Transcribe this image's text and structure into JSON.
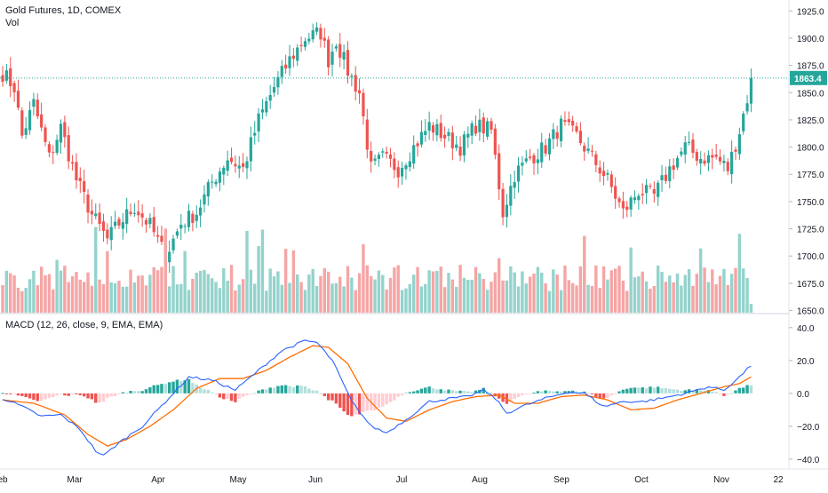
{
  "header": {
    "title": "Gold Futures, 1D, COMEX",
    "volume_label": "Vol",
    "macd_label": "MACD (12, 26, close, 9, EMA, EMA)"
  },
  "colors": {
    "up": "#26a69a",
    "down": "#ef5350",
    "vol_up": "#94d3cc",
    "vol_down": "#f5a5a5",
    "macd_line": "#2962ff",
    "signal_line": "#ff6d00",
    "hist_up_strong": "#26a69a",
    "hist_up_weak": "#b2dfdb",
    "hist_down_strong": "#ef5350",
    "hist_down_weak": "#ffcdd2",
    "price_label_bg": "#26a69a"
  },
  "price_axis": {
    "ticks": [
      "1925.0",
      "1900.0",
      "1875.0",
      "1850.0",
      "1825.0",
      "1800.0",
      "1775.0",
      "1750.0",
      "1725.0",
      "1700.0",
      "1675.0",
      "1650.0"
    ],
    "last_price": "1863.4"
  },
  "macd_axis": {
    "ticks": [
      "40.0",
      "20.0",
      "0.0",
      "−20.0",
      "−40.0"
    ]
  },
  "time_axis": {
    "labels": [
      "Feb",
      "Mar",
      "Apr",
      "May",
      "Jun",
      "Jul",
      "Aug",
      "Sep",
      "Oct",
      "Nov",
      "22"
    ]
  },
  "chart_data": [
    {
      "type": "candlestick",
      "name": "Gold Futures",
      "ylim": [
        1648,
        1935
      ],
      "last": 1863.4,
      "anchors": [
        [
          0,
          1868
        ],
        [
          3,
          1855
        ],
        [
          5,
          1810
        ],
        [
          8,
          1840
        ],
        [
          12,
          1790
        ],
        [
          15,
          1818
        ],
        [
          19,
          1770
        ],
        [
          23,
          1738
        ],
        [
          27,
          1715
        ],
        [
          30,
          1730
        ],
        [
          34,
          1745
        ],
        [
          38,
          1728
        ],
        [
          42,
          1700
        ],
        [
          46,
          1730
        ],
        [
          50,
          1740
        ],
        [
          54,
          1768
        ],
        [
          58,
          1790
        ],
        [
          62,
          1780
        ],
        [
          66,
          1825
        ],
        [
          70,
          1855
        ],
        [
          74,
          1880
        ],
        [
          78,
          1900
        ],
        [
          82,
          1905
        ],
        [
          84,
          1880
        ],
        [
          86,
          1898
        ],
        [
          89,
          1870
        ],
        [
          92,
          1850
        ],
        [
          95,
          1780
        ],
        [
          98,
          1790
        ],
        [
          102,
          1780
        ],
        [
          106,
          1800
        ],
        [
          110,
          1820
        ],
        [
          114,
          1810
        ],
        [
          118,
          1800
        ],
        [
          122,
          1820
        ],
        [
          126,
          1815
        ],
        [
          129,
          1740
        ],
        [
          132,
          1775
        ],
        [
          136,
          1790
        ],
        [
          140,
          1800
        ],
        [
          144,
          1820
        ],
        [
          148,
          1810
        ],
        [
          152,
          1790
        ],
        [
          156,
          1770
        ],
        [
          160,
          1740
        ],
        [
          164,
          1760
        ],
        [
          168,
          1755
        ],
        [
          172,
          1780
        ],
        [
          176,
          1800
        ],
        [
          180,
          1790
        ],
        [
          184,
          1790
        ],
        [
          187,
          1780
        ],
        [
          190,
          1815
        ],
        [
          192,
          1845
        ],
        [
          193,
          1863.4
        ]
      ]
    },
    {
      "type": "bar",
      "name": "Vol",
      "note": "daily volume, relative units"
    },
    {
      "type": "line",
      "name": "MACD",
      "ylim": [
        -46,
        48
      ],
      "macd_anchors": [
        [
          0,
          -3
        ],
        [
          5,
          -8
        ],
        [
          10,
          -14
        ],
        [
          15,
          -13
        ],
        [
          20,
          -22
        ],
        [
          24,
          -35
        ],
        [
          26,
          -38
        ],
        [
          30,
          -30
        ],
        [
          36,
          -20
        ],
        [
          42,
          -5
        ],
        [
          48,
          10
        ],
        [
          54,
          8
        ],
        [
          60,
          2
        ],
        [
          66,
          14
        ],
        [
          72,
          26
        ],
        [
          78,
          32
        ],
        [
          81,
          31
        ],
        [
          85,
          20
        ],
        [
          90,
          -5
        ],
        [
          95,
          -20
        ],
        [
          99,
          -24
        ],
        [
          104,
          -16
        ],
        [
          110,
          -5
        ],
        [
          116,
          -3
        ],
        [
          120,
          -2
        ],
        [
          124,
          2
        ],
        [
          127,
          -3
        ],
        [
          130,
          -12
        ],
        [
          134,
          -8
        ],
        [
          140,
          -3
        ],
        [
          146,
          1
        ],
        [
          150,
          0
        ],
        [
          155,
          -8
        ],
        [
          160,
          -5
        ],
        [
          165,
          -5
        ],
        [
          170,
          -3
        ],
        [
          176,
          0
        ],
        [
          182,
          4
        ],
        [
          186,
          2
        ],
        [
          190,
          10
        ],
        [
          193,
          17
        ]
      ],
      "signal_anchors": [
        [
          0,
          -4
        ],
        [
          8,
          -6
        ],
        [
          16,
          -13
        ],
        [
          22,
          -25
        ],
        [
          27,
          -32
        ],
        [
          32,
          -28
        ],
        [
          38,
          -20
        ],
        [
          44,
          -10
        ],
        [
          50,
          3
        ],
        [
          56,
          9
        ],
        [
          62,
          9
        ],
        [
          68,
          14
        ],
        [
          74,
          22
        ],
        [
          80,
          29
        ],
        [
          84,
          28
        ],
        [
          89,
          18
        ],
        [
          94,
          -3
        ],
        [
          99,
          -15
        ],
        [
          104,
          -17
        ],
        [
          110,
          -10
        ],
        [
          116,
          -5
        ],
        [
          122,
          -2
        ],
        [
          128,
          -1
        ],
        [
          132,
          -6
        ],
        [
          138,
          -6
        ],
        [
          144,
          -2
        ],
        [
          150,
          -1
        ],
        [
          156,
          -4
        ],
        [
          162,
          -10
        ],
        [
          168,
          -9
        ],
        [
          174,
          -4
        ],
        [
          180,
          0
        ],
        [
          186,
          4
        ],
        [
          190,
          6
        ],
        [
          193,
          10
        ]
      ]
    }
  ]
}
